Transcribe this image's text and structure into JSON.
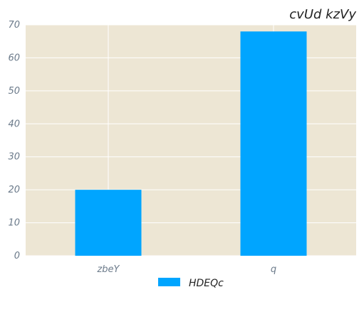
{
  "chart_data": {
    "type": "bar",
    "title": "cvUd kzVy",
    "categories": [
      "zbeY",
      "q"
    ],
    "series": [
      {
        "name": "HDEQc",
        "values": [
          20,
          68
        ]
      }
    ],
    "ylim": [
      0,
      70
    ],
    "yticks": [
      0,
      10,
      20,
      30,
      40,
      50,
      60,
      70
    ],
    "xlabel": "",
    "ylabel": "",
    "grid": true,
    "legend_position": "bottom"
  },
  "colors": {
    "plot_background": "#ede6d4",
    "bar": "#00a5ff",
    "grid": "#ffffff"
  }
}
